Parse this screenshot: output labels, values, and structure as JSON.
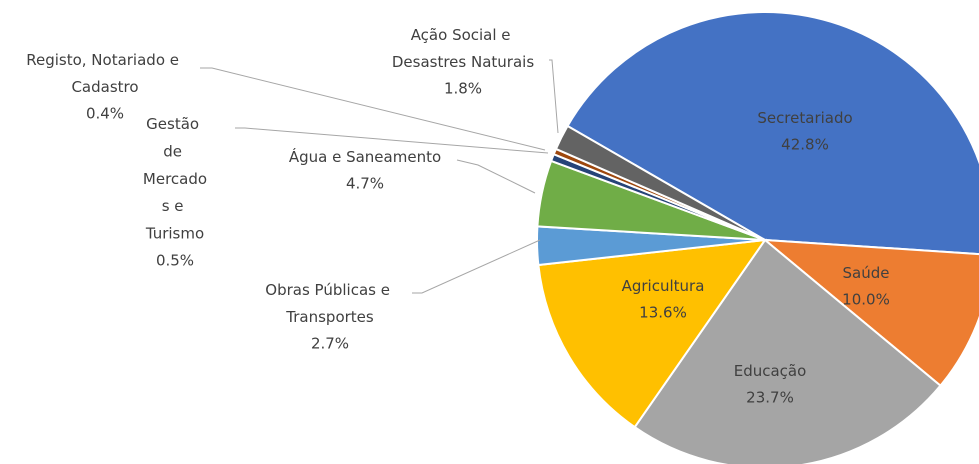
{
  "chart_data": {
    "type": "pie",
    "categories": [
      "Secretariado",
      "Saúde",
      "Educação",
      "Agricultura",
      "Obras Públicas e Transportes",
      "Água e Saneamento",
      "Gestão de Mercados e Turismo",
      "Registo, Notariado e Cadastro",
      "Ação Social e Desastres Naturais"
    ],
    "values": [
      42.8,
      10.0,
      23.7,
      13.6,
      2.7,
      4.7,
      0.5,
      0.4,
      1.8
    ],
    "value_labels": [
      "42.8%",
      "10.0%",
      "23.7%",
      "13.6%",
      "2.7%",
      "4.7%",
      "0.5%",
      "0.4%",
      "1.8%"
    ],
    "colors": [
      "#4472c4",
      "#ed7d31",
      "#a5a5a5",
      "#ffc000",
      "#5b9bd5",
      "#70ad47",
      "#264478",
      "#9e480e",
      "#636363"
    ],
    "start_angle": 300
  }
}
